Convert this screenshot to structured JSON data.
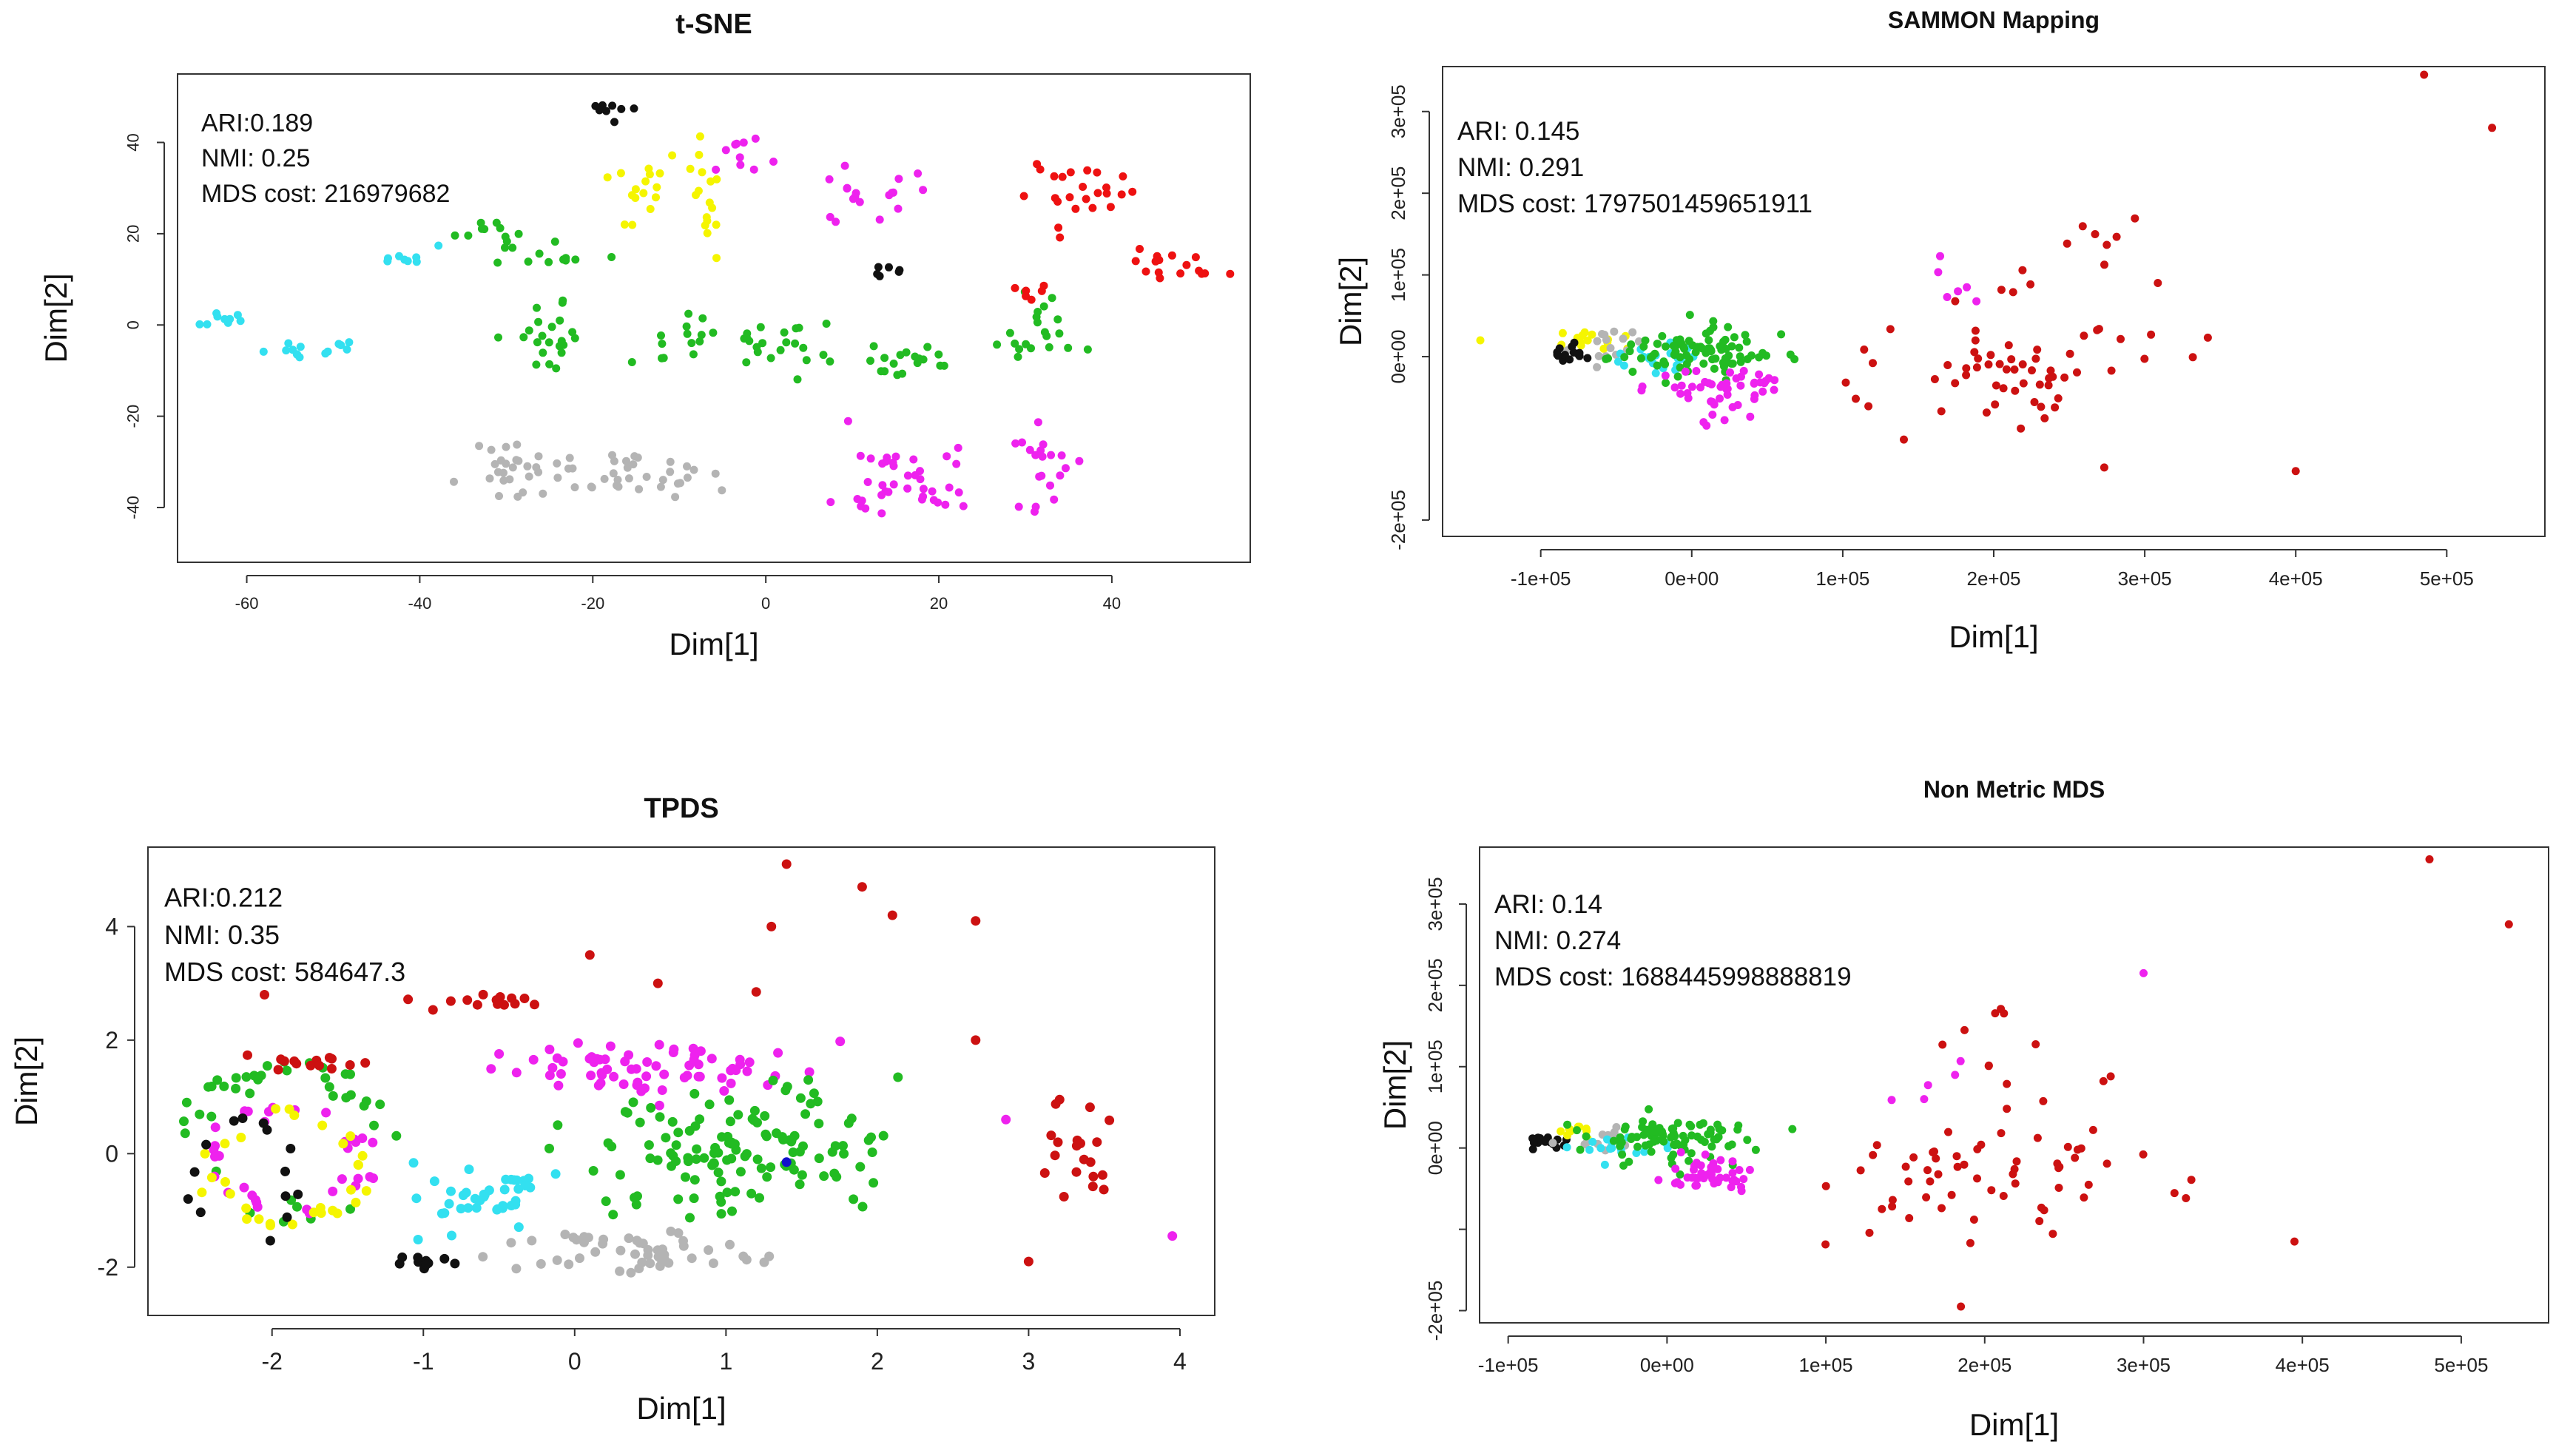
{
  "chart_data": [
    {
      "type": "scatter",
      "title": "t-SNE",
      "xlabel": "Dim[1]",
      "ylabel": "Dim[2]",
      "xlim": [
        -68,
        56
      ],
      "ylim": [
        -52,
        55
      ],
      "xticks": [
        -60,
        -40,
        -20,
        0,
        20,
        40
      ],
      "yticks": [
        -40,
        -20,
        0,
        20,
        40
      ],
      "tick_labels_x": [
        "-60",
        "-40",
        "-20",
        "0",
        "20",
        "40"
      ],
      "tick_labels_y": [
        "-40",
        "-20",
        "0",
        "20",
        "40"
      ],
      "metrics": [
        "ARI:0.189",
        "NMI: 0.25",
        "MDS cost: 216979682"
      ],
      "colors": {
        "cyan": "#33e0f0",
        "green": "#22bb22",
        "gray": "#b4b4b4",
        "black": "#111111",
        "yellow": "#f5f500",
        "magenta": "#ee22ee",
        "red": "#ee1111",
        "blue": "#1111cc"
      },
      "clusters": [
        {
          "color": "cyan",
          "center": [
            -63,
            1
          ],
          "spread": [
            3,
            2
          ],
          "n": 10
        },
        {
          "color": "cyan",
          "center": [
            -52,
            -5
          ],
          "spread": [
            4,
            2
          ],
          "n": 14
        },
        {
          "color": "cyan",
          "center": [
            -42,
            15
          ],
          "spread": [
            3,
            2
          ],
          "n": 8
        },
        {
          "color": "green",
          "center": [
            -32,
            21
          ],
          "spread": [
            4,
            3
          ],
          "n": 10
        },
        {
          "color": "green",
          "center": [
            -25,
            15
          ],
          "spread": [
            5,
            2
          ],
          "n": 12
        },
        {
          "color": "green",
          "center": [
            -25,
            -3
          ],
          "spread": [
            4,
            7
          ],
          "n": 22
        },
        {
          "color": "gray",
          "center": [
            -28,
            -32
          ],
          "spread": [
            6,
            6
          ],
          "n": 30
        },
        {
          "color": "gray",
          "center": [
            -14,
            -33
          ],
          "spread": [
            6,
            5
          ],
          "n": 30
        },
        {
          "color": "black",
          "center": [
            -19,
            47
          ],
          "spread": [
            3,
            2
          ],
          "n": 8
        },
        {
          "color": "yellow",
          "center": [
            -14,
            30
          ],
          "spread": [
            4,
            8
          ],
          "n": 16
        },
        {
          "color": "yellow",
          "center": [
            -7,
            28
          ],
          "spread": [
            2,
            12
          ],
          "n": 16
        },
        {
          "color": "magenta",
          "center": [
            -2,
            38
          ],
          "spread": [
            4,
            4
          ],
          "n": 10
        },
        {
          "color": "magenta",
          "center": [
            12,
            30
          ],
          "spread": [
            6,
            5
          ],
          "n": 18
        },
        {
          "color": "green",
          "center": [
            -9,
            -3
          ],
          "spread": [
            4,
            5
          ],
          "n": 14
        },
        {
          "color": "green",
          "center": [
            0,
            -5
          ],
          "spread": [
            5,
            5
          ],
          "n": 20
        },
        {
          "color": "green",
          "center": [
            15,
            -7
          ],
          "spread": [
            7,
            3
          ],
          "n": 20
        },
        {
          "color": "green",
          "center": [
            32,
            -2
          ],
          "spread": [
            4,
            6
          ],
          "n": 20
        },
        {
          "color": "red",
          "center": [
            36,
            30
          ],
          "spread": [
            5,
            6
          ],
          "n": 24
        },
        {
          "color": "red",
          "center": [
            47,
            13
          ],
          "spread": [
            4,
            4
          ],
          "n": 16
        },
        {
          "color": "magenta",
          "center": [
            17,
            -35
          ],
          "spread": [
            7,
            8
          ],
          "n": 40
        },
        {
          "color": "magenta",
          "center": [
            31,
            -30
          ],
          "spread": [
            5,
            8
          ],
          "n": 20
        },
        {
          "color": "black",
          "center": [
            14,
            12
          ],
          "spread": [
            3,
            2
          ],
          "n": 6
        },
        {
          "color": "red",
          "center": [
            30,
            8
          ],
          "spread": [
            3,
            3
          ],
          "n": 6
        }
      ]
    },
    {
      "type": "scatter",
      "title": "SAMMON Mapping",
      "xlabel": "Dim[1]",
      "ylabel": "Dim[2]",
      "xlim": [
        -165000,
        565000
      ],
      "ylim": [
        -220000,
        355000
      ],
      "xticks": [
        -100000,
        0,
        100000,
        200000,
        300000,
        400000,
        500000
      ],
      "yticks": [
        -200000,
        0,
        100000,
        200000,
        300000
      ],
      "tick_labels_x": [
        "-1e+05",
        "0e+00",
        "1e+05",
        "2e+05",
        "3e+05",
        "4e+05",
        "5e+05"
      ],
      "tick_labels_y": [
        "-2e+05",
        "0e+00",
        "1e+05",
        "2e+05",
        "3e+05"
      ],
      "metrics": [
        "ARI: 0.145",
        "NMI: 0.291",
        "MDS cost: 1797501459651911"
      ],
      "colors": {
        "cyan": "#33e0f0",
        "green": "#22bb22",
        "gray": "#b4b4b4",
        "black": "#111111",
        "yellow": "#f5f500",
        "magenta": "#ee22ee",
        "red": "#cc1111",
        "blue": "#1111cc"
      },
      "clusters": [
        {
          "color": "yellow",
          "center": [
            -60000,
            20000
          ],
          "spread": [
            20000,
            10000
          ],
          "n": 14
        },
        {
          "color": "gray",
          "center": [
            -50000,
            10000
          ],
          "spread": [
            20000,
            15000
          ],
          "n": 16
        },
        {
          "color": "black",
          "center": [
            -80000,
            5000
          ],
          "spread": [
            12000,
            8000
          ],
          "n": 14
        },
        {
          "color": "cyan",
          "center": [
            -30000,
            -5000
          ],
          "spread": [
            25000,
            20000
          ],
          "n": 20
        },
        {
          "color": "green",
          "center": [
            0,
            5000
          ],
          "spread": [
            45000,
            25000
          ],
          "n": 90
        },
        {
          "color": "magenta",
          "center": [
            20000,
            -40000
          ],
          "spread": [
            35000,
            25000
          ],
          "n": 50
        },
        {
          "color": "red",
          "center": [
            210000,
            -20000
          ],
          "spread": [
            90000,
            70000
          ],
          "n": 60
        },
        {
          "color": "red",
          "center": [
            250000,
            120000
          ],
          "spread": [
            60000,
            60000
          ],
          "n": 12
        },
        {
          "color": "magenta",
          "center": [
            160000,
            100000
          ],
          "spread": [
            40000,
            40000
          ],
          "n": 6
        }
      ],
      "points": [
        {
          "color": "red",
          "x": 485000,
          "y": 345000
        },
        {
          "color": "red",
          "x": 530000,
          "y": 280000
        },
        {
          "color": "red",
          "x": 400000,
          "y": -140000
        },
        {
          "color": "yellow",
          "x": -140000,
          "y": 20000
        }
      ]
    },
    {
      "type": "scatter",
      "title": "TPDS",
      "xlabel": "Dim[1]",
      "ylabel": "Dim[2]",
      "xlim": [
        -2.82,
        4.23
      ],
      "ylim": [
        -2.85,
        5.4
      ],
      "xticks": [
        -2,
        -1,
        0,
        1,
        2,
        3,
        4
      ],
      "yticks": [
        -2,
        0,
        2,
        4
      ],
      "tick_labels_x": [
        "-2",
        "-1",
        "0",
        "1",
        "2",
        "3",
        "4"
      ],
      "tick_labels_y": [
        "-2",
        "0",
        "2",
        "4"
      ],
      "metrics": [
        "ARI:0.212",
        "NMI: 0.35",
        "MDS cost: 584647.3"
      ],
      "colors": {
        "cyan": "#33e0f0",
        "green": "#22bb22",
        "gray": "#b4b4b4",
        "black": "#111111",
        "yellow": "#f5f500",
        "magenta": "#ee22ee",
        "red": "#cc1111",
        "blue": "#1111cc"
      },
      "rings": [
        {
          "color": "green",
          "center": [
            -1.9,
            0.2
          ],
          "radii": [
            0.7,
            1.3
          ],
          "n": 40
        },
        {
          "color": "magenta",
          "center": [
            -1.9,
            -0.1
          ],
          "radii": [
            0.55,
            0.9
          ],
          "n": 35
        },
        {
          "color": "yellow",
          "center": [
            -1.9,
            -0.3
          ],
          "radii": [
            0.55,
            1.0
          ],
          "n": 30
        },
        {
          "color": "black",
          "center": [
            -2.2,
            -0.5
          ],
          "radii": [
            0.35,
            1.2
          ],
          "n": 14
        }
      ],
      "clusters": [
        {
          "color": "red",
          "center": [
            -1.7,
            1.6
          ],
          "spread": [
            0.35,
            0.15
          ],
          "n": 14
        },
        {
          "color": "red",
          "center": [
            -0.6,
            2.7
          ],
          "spread": [
            0.35,
            0.15
          ],
          "n": 14
        },
        {
          "color": "cyan",
          "center": [
            -0.55,
            -0.8
          ],
          "spread": [
            0.45,
            0.5
          ],
          "n": 40
        },
        {
          "color": "gray",
          "center": [
            0.4,
            -1.8
          ],
          "spread": [
            0.8,
            0.3
          ],
          "n": 50
        },
        {
          "color": "magenta",
          "center": [
            0.6,
            1.5
          ],
          "spread": [
            0.9,
            0.35
          ],
          "n": 70
        },
        {
          "color": "green",
          "center": [
            1.15,
            0.1
          ],
          "spread": [
            0.75,
            0.9
          ],
          "n": 130
        },
        {
          "color": "black",
          "center": [
            -1.0,
            -1.9
          ],
          "spread": [
            0.15,
            0.1
          ],
          "n": 10
        },
        {
          "color": "red",
          "center": [
            3.35,
            0.1
          ],
          "spread": [
            0.3,
            1.1
          ],
          "n": 20
        }
      ],
      "points": [
        {
          "color": "red",
          "x": 1.4,
          "y": 5.1
        },
        {
          "color": "red",
          "x": 1.9,
          "y": 4.7
        },
        {
          "color": "red",
          "x": 2.1,
          "y": 4.2
        },
        {
          "color": "red",
          "x": 2.65,
          "y": 4.1
        },
        {
          "color": "red",
          "x": 1.3,
          "y": 4.0
        },
        {
          "color": "red",
          "x": 0.1,
          "y": 3.5
        },
        {
          "color": "red",
          "x": -2.05,
          "y": 2.8
        },
        {
          "color": "red",
          "x": 0.55,
          "y": 3.0
        },
        {
          "color": "red",
          "x": 1.2,
          "y": 2.85
        },
        {
          "color": "red",
          "x": 2.65,
          "y": 2.0
        },
        {
          "color": "red",
          "x": 3.0,
          "y": -1.9
        },
        {
          "color": "magenta",
          "x": 3.95,
          "y": -1.45
        },
        {
          "color": "magenta",
          "x": 2.85,
          "y": 0.6
        },
        {
          "color": "blue",
          "x": 1.4,
          "y": -0.15
        }
      ]
    },
    {
      "type": "scatter",
      "title": "Non Metric MDS",
      "xlabel": "Dim[1]",
      "ylabel": "Dim[2]",
      "xlim": [
        -118000,
        555000
      ],
      "ylim": [
        -215000,
        370000
      ],
      "xticks": [
        -100000,
        0,
        100000,
        200000,
        300000,
        400000,
        500000
      ],
      "yticks": [
        -200000,
        -100000,
        0,
        100000,
        200000,
        300000
      ],
      "tick_labels_x": [
        "-1e+05",
        "0e+00",
        "1e+05",
        "2e+05",
        "3e+05",
        "4e+05",
        "5e+05"
      ],
      "tick_labels_y": [
        "-2e+05",
        "",
        "0e+00",
        "1e+05",
        "2e+05",
        "3e+05"
      ],
      "metrics": [
        "ARI: 0.14",
        "NMI: 0.274",
        "MDS cost: 1688445998888819"
      ],
      "colors": {
        "cyan": "#33e0f0",
        "green": "#22bb22",
        "gray": "#b4b4b4",
        "black": "#111111",
        "yellow": "#f5f500",
        "magenta": "#ee22ee",
        "red": "#cc1111",
        "blue": "#1111cc"
      },
      "clusters": [
        {
          "color": "black",
          "center": [
            -75000,
            10000
          ],
          "spread": [
            12000,
            8000
          ],
          "n": 16
        },
        {
          "color": "yellow",
          "center": [
            -55000,
            20000
          ],
          "spread": [
            15000,
            10000
          ],
          "n": 10
        },
        {
          "color": "gray",
          "center": [
            -40000,
            10000
          ],
          "spread": [
            20000,
            12000
          ],
          "n": 14
        },
        {
          "color": "cyan",
          "center": [
            -30000,
            0
          ],
          "spread": [
            25000,
            15000
          ],
          "n": 18
        },
        {
          "color": "green",
          "center": [
            5000,
            10000
          ],
          "spread": [
            45000,
            25000
          ],
          "n": 90
        },
        {
          "color": "magenta",
          "center": [
            25000,
            -35000
          ],
          "spread": [
            30000,
            20000
          ],
          "n": 45
        },
        {
          "color": "red",
          "center": [
            210000,
            -40000
          ],
          "spread": [
            95000,
            60000
          ],
          "n": 60
        },
        {
          "color": "red",
          "center": [
            240000,
            110000
          ],
          "spread": [
            60000,
            60000
          ],
          "n": 12
        },
        {
          "color": "magenta",
          "center": [
            160000,
            90000
          ],
          "spread": [
            40000,
            40000
          ],
          "n": 5
        }
      ],
      "points": [
        {
          "color": "red",
          "x": 480000,
          "y": 355000
        },
        {
          "color": "red",
          "x": 530000,
          "y": 275000
        },
        {
          "color": "red",
          "x": 395000,
          "y": -115000
        },
        {
          "color": "red",
          "x": 185000,
          "y": -195000
        },
        {
          "color": "magenta",
          "x": 300000,
          "y": 215000
        }
      ]
    }
  ]
}
